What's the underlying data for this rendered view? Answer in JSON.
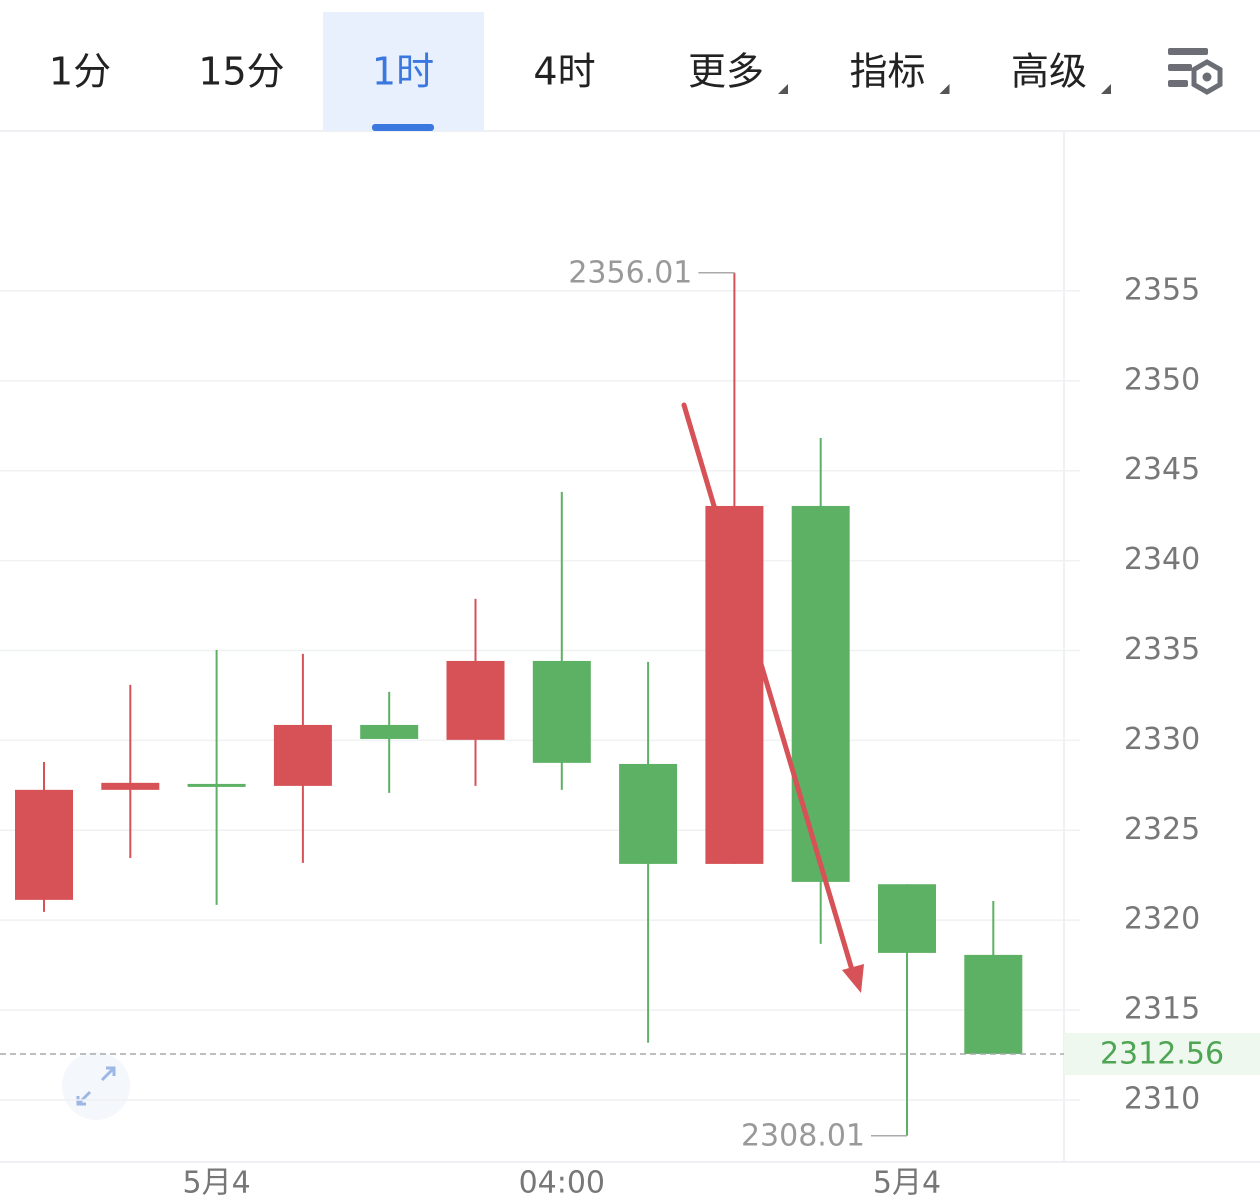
{
  "tabs": [
    {
      "label": "1分",
      "dropdown": false
    },
    {
      "label": "15分",
      "dropdown": false
    },
    {
      "label": "1时",
      "dropdown": false
    },
    {
      "label": "4时",
      "dropdown": false
    },
    {
      "label": "更多",
      "dropdown": true
    },
    {
      "label": "指标",
      "dropdown": true
    },
    {
      "label": "高级",
      "dropdown": true
    }
  ],
  "active_tab": 2,
  "chart_data": {
    "type": "candlestick",
    "categories": [
      null,
      null,
      "5月4",
      null,
      null,
      null,
      "04:00",
      null,
      null,
      null,
      "5月4",
      null
    ],
    "open": [
      2321.13,
      2327.25,
      2327.58,
      2327.47,
      2330.86,
      2330.03,
      2334.42,
      2328.69,
      2323.13,
      2343.04,
      2322.0,
      2318.07
    ],
    "high": [
      2328.8,
      2333.09,
      2335.03,
      2334.81,
      2332.7,
      2337.87,
      2343.82,
      2334.37,
      2356.01,
      2346.82,
      2322.0,
      2321.07
    ],
    "low": [
      2320.46,
      2323.46,
      2320.85,
      2323.19,
      2327.08,
      2327.47,
      2327.25,
      2313.18,
      2323.13,
      2318.68,
      2308.01,
      2312.56
    ],
    "close": [
      2327.25,
      2327.64,
      2327.58,
      2330.86,
      2330.08,
      2334.42,
      2328.75,
      2323.13,
      2343.04,
      2322.13,
      2318.18,
      2312.56
    ],
    "up_color": "#d65257",
    "down_color": "#5db164",
    "ylim": [
      2306.55,
      2363.84
    ],
    "yticks": [
      2310,
      2315,
      2320,
      2325,
      2330,
      2335,
      2340,
      2345,
      2350,
      2355
    ],
    "grid": true,
    "y_axis_side": "right",
    "high_label_index": 8,
    "low_label_index": 10,
    "last_index": 11
  }
}
